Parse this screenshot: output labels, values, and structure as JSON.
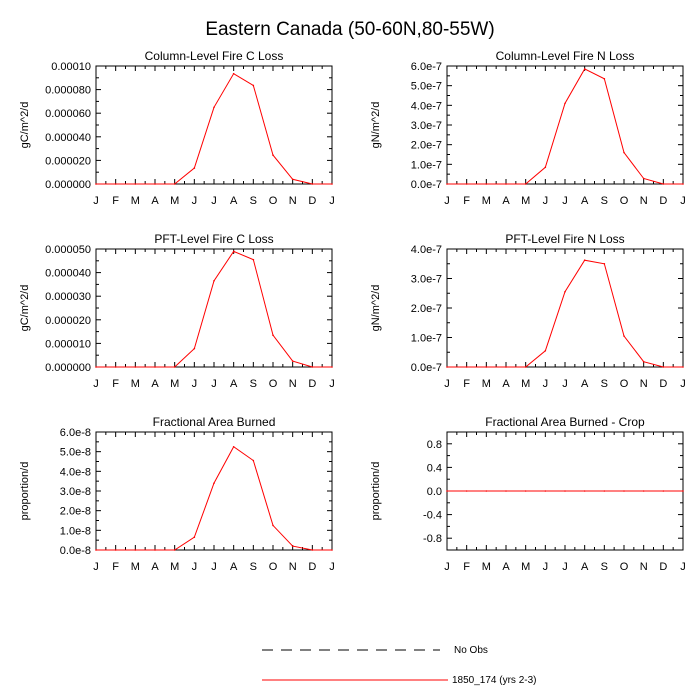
{
  "figure": {
    "title": "Eastern Canada (50-60N,80-55W)"
  },
  "months": [
    "J",
    "F",
    "M",
    "A",
    "M",
    "J",
    "J",
    "A",
    "S",
    "O",
    "N",
    "D",
    "J"
  ],
  "legend": {
    "obs_label": "No Obs",
    "model_label": "1850_174 (yrs 2-3)",
    "model_color": "#ff0000",
    "obs_color": "#000000"
  },
  "chart_data": [
    {
      "type": "line",
      "title": "Column-Level Fire C Loss",
      "ylabel": "gC/m^2/d",
      "ylim": [
        0,
        0.0001
      ],
      "yticks": [
        0,
        2e-05,
        4e-05,
        6e-05,
        8e-05,
        0.0001
      ],
      "ytick_labels": [
        "0.000000",
        "0.000020",
        "0.000040",
        "0.000060",
        "0.000080",
        "0.00010"
      ],
      "series": [
        {
          "name": "1850_174 (yrs 2-3)",
          "values": [
            0,
            0,
            0,
            0,
            0,
            1.35e-05,
            6.5e-05,
            9.35e-05,
            8.35e-05,
            2.45e-05,
            4e-06,
            0,
            0
          ]
        }
      ]
    },
    {
      "type": "line",
      "title": "Column-Level Fire N Loss",
      "ylabel": "gN/m^2/d",
      "ylim": [
        0,
        6e-07
      ],
      "yticks": [
        0,
        1e-07,
        2e-07,
        3e-07,
        4e-07,
        5e-07,
        6e-07
      ],
      "ytick_labels": [
        "0.0e-7",
        "1.0e-7",
        "2.0e-7",
        "3.0e-7",
        "4.0e-7",
        "5.0e-7",
        "6.0e-7"
      ],
      "series": [
        {
          "name": "1850_174 (yrs 2-3)",
          "values": [
            0,
            0,
            0,
            0,
            0,
            8.5e-08,
            4.1e-07,
            5.85e-07,
            5.35e-07,
            1.6e-07,
            2.8e-08,
            0,
            0
          ]
        }
      ]
    },
    {
      "type": "line",
      "title": "PFT-Level Fire C Loss",
      "ylabel": "gC/m^2/d",
      "ylim": [
        0,
        5e-05
      ],
      "yticks": [
        0,
        1e-05,
        2e-05,
        3e-05,
        4e-05,
        5e-05
      ],
      "ytick_labels": [
        "0.000000",
        "0.000010",
        "0.000020",
        "0.000030",
        "0.000040",
        "0.000050"
      ],
      "series": [
        {
          "name": "1850_174 (yrs 2-3)",
          "values": [
            0,
            0,
            0,
            0,
            0,
            7.8e-06,
            3.65e-05,
            4.9e-05,
            4.55e-05,
            1.35e-05,
            2.5e-06,
            0,
            0
          ]
        }
      ]
    },
    {
      "type": "line",
      "title": "PFT-Level Fire N Loss",
      "ylabel": "gN/m^2/d",
      "ylim": [
        0,
        4e-07
      ],
      "yticks": [
        0,
        1e-07,
        2e-07,
        3e-07,
        4e-07
      ],
      "ytick_labels": [
        "0.0e-7",
        "1.0e-7",
        "2.0e-7",
        "3.0e-7",
        "4.0e-7"
      ],
      "series": [
        {
          "name": "1850_174 (yrs 2-3)",
          "values": [
            0,
            0,
            0,
            0,
            0,
            5.5e-08,
            2.55e-07,
            3.62e-07,
            3.5e-07,
            1.05e-07,
            1.8e-08,
            0,
            0
          ]
        }
      ]
    },
    {
      "type": "line",
      "title": "Fractional Area Burned",
      "ylabel": "proportion/d",
      "ylim": [
        0,
        6e-08
      ],
      "yticks": [
        0,
        1e-08,
        2e-08,
        3e-08,
        4e-08,
        5e-08,
        6e-08
      ],
      "ytick_labels": [
        "0.0e-8",
        "1.0e-8",
        "2.0e-8",
        "3.0e-8",
        "4.0e-8",
        "5.0e-8",
        "6.0e-8"
      ],
      "series": [
        {
          "name": "1850_174 (yrs 2-3)",
          "values": [
            0,
            0,
            0,
            0,
            0,
            6.5e-09,
            3.4e-08,
            5.25e-08,
            4.55e-08,
            1.25e-08,
            2e-09,
            0,
            0
          ]
        }
      ]
    },
    {
      "type": "line",
      "title": "Fractional Area Burned - Crop",
      "ylabel": "proportion/d",
      "ylim": [
        -1.0,
        1.0
      ],
      "yticks": [
        -0.8,
        -0.4,
        0,
        0.4,
        0.8
      ],
      "ytick_labels": [
        "-0.8",
        "-0.4",
        "0.0",
        "0.4",
        "0.8"
      ],
      "series": [
        {
          "name": "1850_174 (yrs 2-3)",
          "values": [
            0,
            0,
            0,
            0,
            0,
            0,
            0,
            0,
            0,
            0,
            0,
            0,
            0
          ]
        }
      ]
    }
  ]
}
